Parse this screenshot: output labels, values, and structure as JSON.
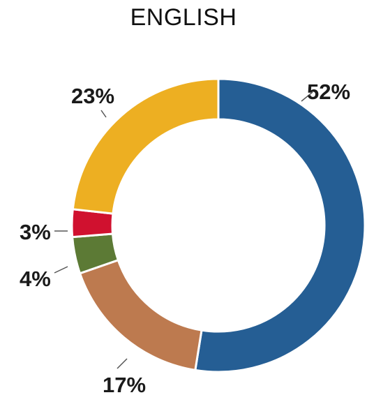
{
  "chart_data": {
    "type": "pie",
    "title": "ENGLISH",
    "categories": [
      "",
      "",
      "",
      "",
      ""
    ],
    "values": [
      52,
      17,
      4,
      3,
      23
    ],
    "labels": [
      "52%",
      "17%",
      "4%",
      "3%",
      "23%"
    ],
    "colors": [
      "#255E94",
      "#BD7A4F",
      "#5C7A35",
      "#D0112F",
      "#EDAF22"
    ],
    "donut": true,
    "start": "12 o'clock, clockwise"
  }
}
